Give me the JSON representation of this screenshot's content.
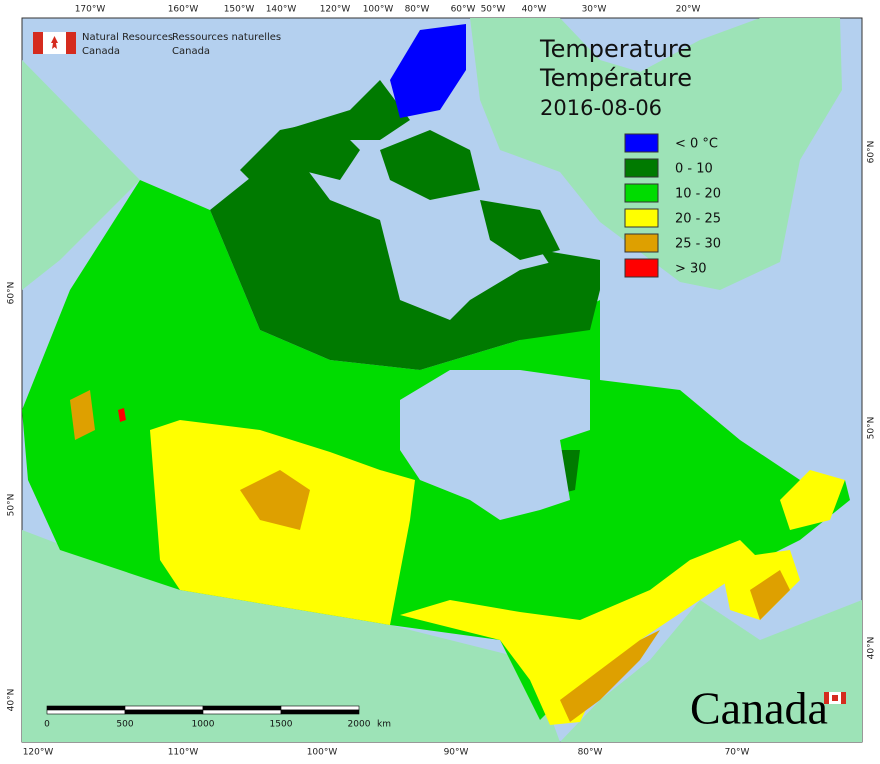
{
  "header": {
    "agency_en": [
      "Natural Resources",
      "Canada"
    ],
    "agency_fr": [
      "Ressources naturelles",
      "Canada"
    ]
  },
  "title": {
    "en": "Temperature",
    "fr": "Température",
    "date": "2016-08-06"
  },
  "legend": [
    {
      "label": "< 0 °C",
      "color": "#0000ff"
    },
    {
      "label": "0 - 10",
      "color": "#007a00"
    },
    {
      "label": "10 - 20",
      "color": "#00dc00"
    },
    {
      "label": "20 - 25",
      "color": "#ffff00"
    },
    {
      "label": "25 - 30",
      "color": "#dea000"
    },
    {
      "label": "> 30",
      "color": "#ff0000"
    }
  ],
  "graticule": {
    "top": [
      "170°W",
      "160°W",
      "150°W",
      "140°W",
      "120°W",
      "100°W",
      "80°W",
      "60°W",
      "50°W",
      "40°W",
      "30°W",
      "20°W"
    ],
    "bottom": [
      "120°W",
      "110°W",
      "100°W",
      "90°W",
      "80°W",
      "70°W"
    ],
    "left": [
      "60°N",
      "50°N",
      "40°N"
    ],
    "right": [
      "60°N",
      "50°N",
      "40°N"
    ]
  },
  "scale_bar": {
    "labels": [
      "0",
      "500",
      "1000",
      "1500",
      "2000"
    ],
    "unit": "km"
  },
  "wordmark": "Canada"
}
